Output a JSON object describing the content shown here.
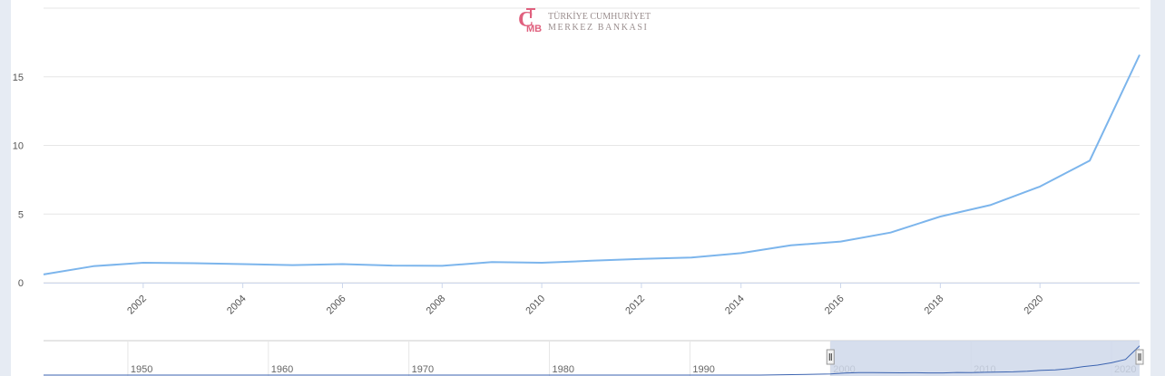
{
  "watermark": {
    "line1": "TÜRKİYE CUMHURİYET",
    "line2": "MERKEZ BANKASI",
    "emblem_letters": "TCMB",
    "color": "#e0607e"
  },
  "colors": {
    "line": "#7cb5ec",
    "grid": "#e6e6e6",
    "navigator_fill": "#cfd8ea",
    "navigator_line": "#3b63b0"
  },
  "chart_data": {
    "type": "line",
    "x": [
      2000,
      2001,
      2002,
      2003,
      2004,
      2005,
      2006,
      2007,
      2008,
      2009,
      2010,
      2011,
      2012,
      2013,
      2014,
      2015,
      2016,
      2017,
      2018,
      2019,
      2020,
      2021,
      2022
    ],
    "series": [
      {
        "values": [
          0.6,
          1.2,
          1.45,
          1.42,
          1.35,
          1.28,
          1.35,
          1.25,
          1.23,
          1.5,
          1.45,
          1.6,
          1.73,
          1.83,
          2.15,
          2.72,
          3.0,
          3.65,
          4.82,
          5.65,
          7.0,
          8.9,
          16.6
        ]
      }
    ],
    "x_ticks": [
      "2002",
      "2004",
      "2006",
      "2008",
      "2010",
      "2012",
      "2014",
      "2016",
      "2018",
      "2020"
    ],
    "y_ticks": [
      "0",
      "5",
      "10",
      "15"
    ],
    "xlim": [
      2000,
      2022
    ],
    "ylim": [
      0,
      20
    ],
    "grid": true,
    "legend": "none",
    "navigator": {
      "ticks": [
        "1950",
        "1960",
        "1970",
        "1980",
        "1990",
        "2000",
        "2010",
        "2020"
      ],
      "range": [
        1944,
        2022
      ],
      "selected": [
        2000,
        2022
      ]
    }
  }
}
